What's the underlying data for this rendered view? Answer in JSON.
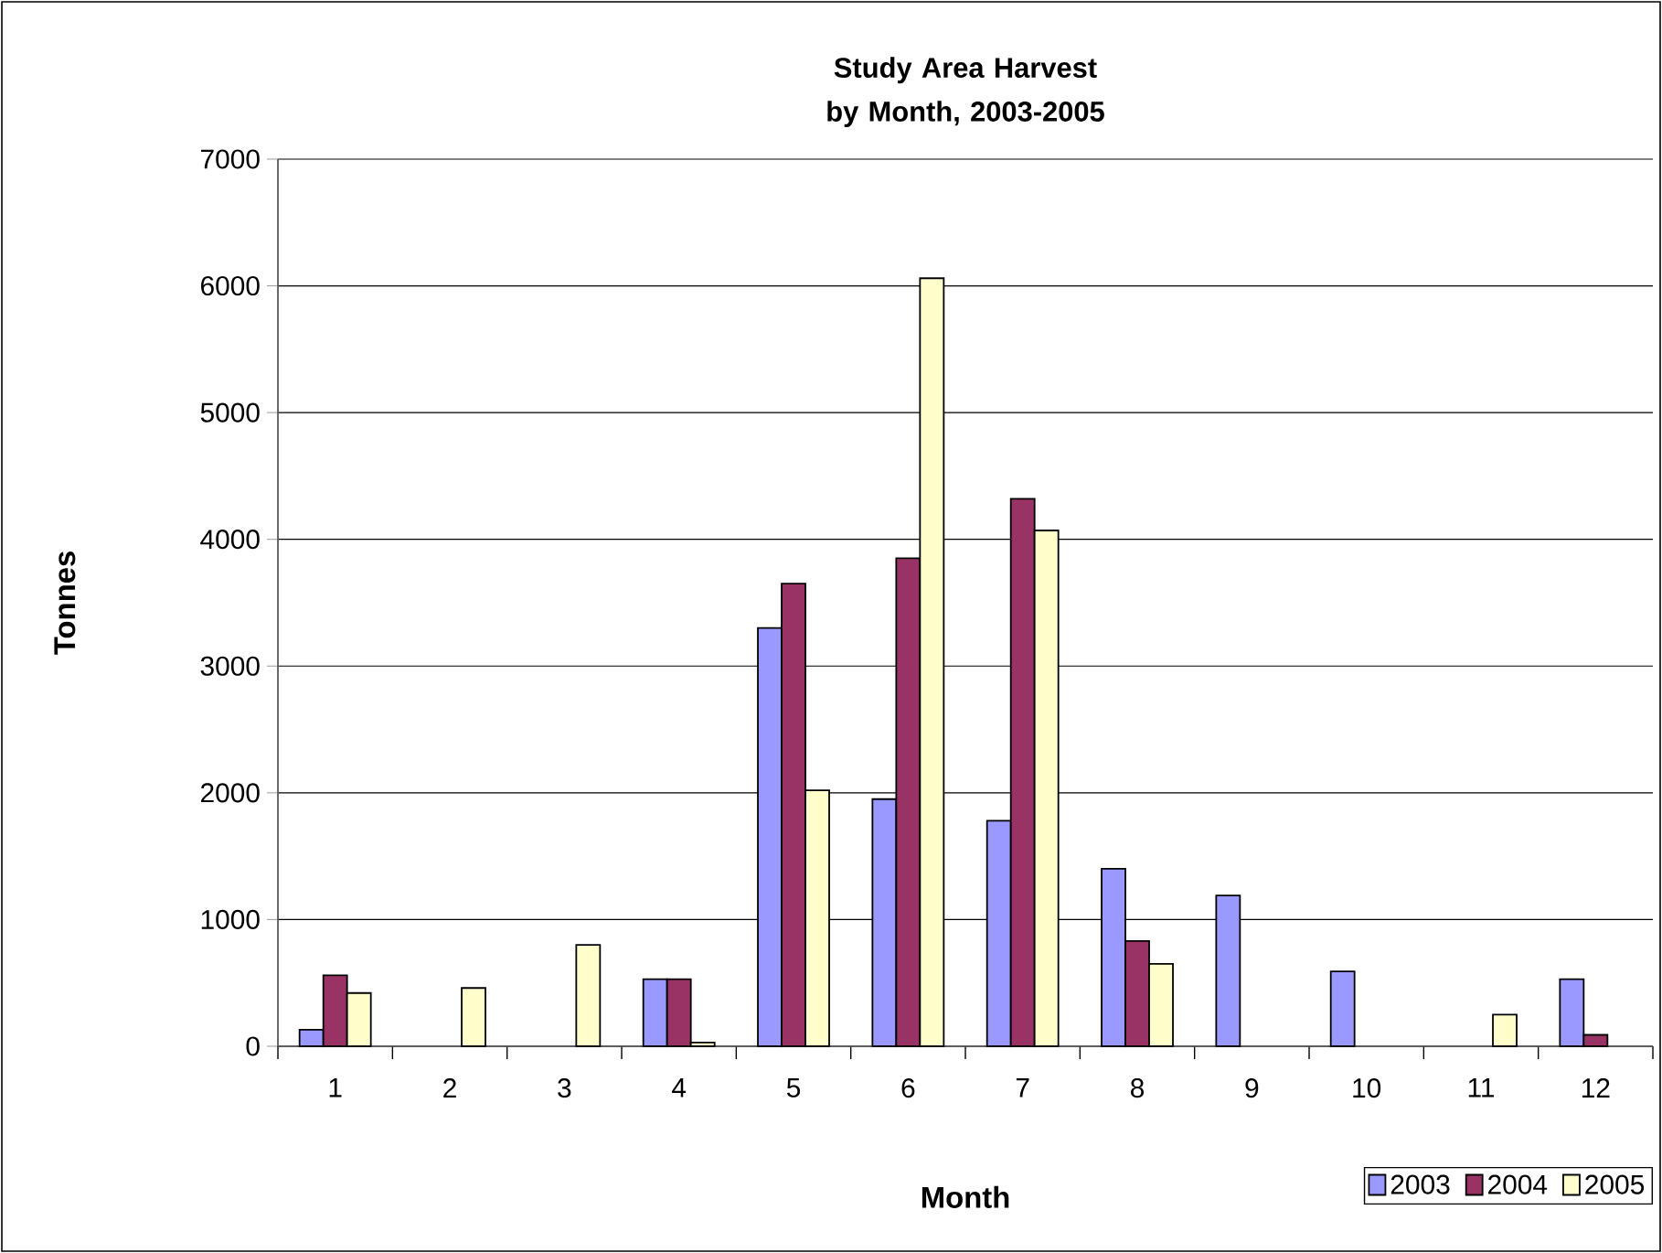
{
  "chart_data": {
    "type": "bar",
    "title": "Study Area Harvest by Month, 2003-2005",
    "xlabel": "Month",
    "ylabel": "Tonnes",
    "categories": [
      "1",
      "2",
      "3",
      "4",
      "5",
      "6",
      "7",
      "8",
      "9",
      "10",
      "11",
      "12"
    ],
    "series": [
      {
        "name": "2003",
        "color": "#9999ff",
        "values": [
          130,
          null,
          null,
          530,
          3300,
          1950,
          1780,
          1400,
          1190,
          590,
          null,
          530
        ]
      },
      {
        "name": "2004",
        "color": "#993366",
        "values": [
          560,
          null,
          null,
          530,
          3650,
          3850,
          4320,
          830,
          null,
          null,
          null,
          90
        ]
      },
      {
        "name": "2005",
        "color": "#ffffcc",
        "values": [
          420,
          460,
          800,
          30,
          2020,
          6060,
          4070,
          650,
          null,
          null,
          250,
          null
        ]
      }
    ],
    "ylim": [
      0,
      7000
    ],
    "yticks": [
      0,
      1000,
      2000,
      3000,
      4000,
      5000,
      6000,
      7000
    ],
    "grid": "y",
    "legend": "bottom right"
  }
}
